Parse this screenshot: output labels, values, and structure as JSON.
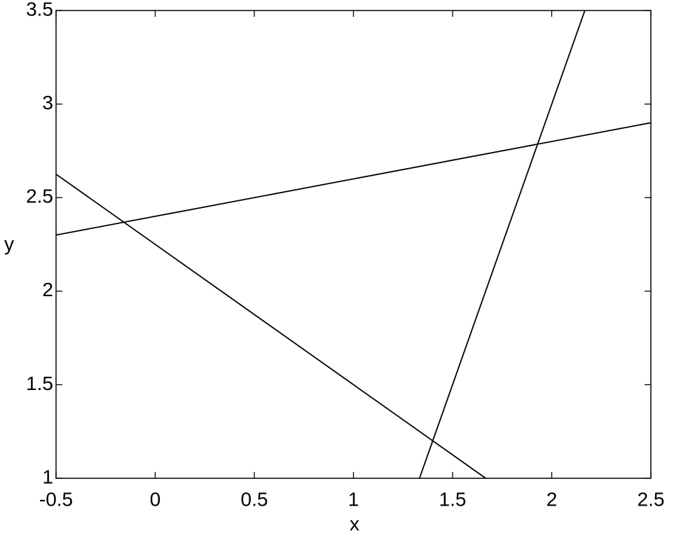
{
  "chart_data": {
    "type": "line",
    "xlabel": "x",
    "ylabel": "y",
    "series": [
      {
        "x": [
          -0.5,
          2.5
        ],
        "values": [
          2.3,
          2.9
        ],
        "color": "#000000"
      },
      {
        "x": [
          -0.5,
          1.667
        ],
        "values": [
          2.625,
          1
        ],
        "color": "#000000"
      },
      {
        "x": [
          1.333,
          2.167
        ],
        "values": [
          1,
          3.5
        ],
        "color": "#000000"
      }
    ],
    "xlim": [
      -0.5,
      2.5
    ],
    "xticks": [
      -0.5,
      0,
      0.5,
      1,
      1.5,
      2,
      2.5
    ],
    "ylim": [
      1,
      3.5
    ],
    "yticks": [
      1,
      1.5,
      2,
      2.5,
      3,
      3.5
    ],
    "grid": false
  }
}
